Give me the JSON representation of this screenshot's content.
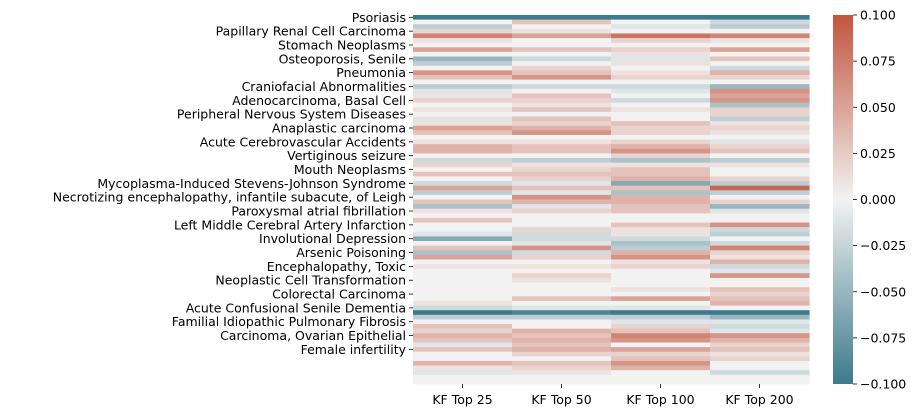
{
  "chart_data": {
    "type": "heatmap",
    "title": "",
    "xlabel": "",
    "ylabel": "",
    "columns": [
      "KF Top 25",
      "KF Top 50",
      "KF Top 100",
      "KF Top 200"
    ],
    "row_count": 80,
    "y_tick_labels": [
      "Psoriasis",
      "Papillary Renal Cell Carcinoma",
      "Stomach Neoplasms",
      "Osteoporosis, Senile",
      "Pneumonia",
      "Craniofacial Abnormalities",
      "Adenocarcinoma, Basal Cell",
      "Peripheral Nervous System Diseases",
      "Anaplastic carcinoma",
      "Acute Cerebrovascular Accidents",
      "Vertiginous seizure",
      "Mouth Neoplasms",
      "Mycoplasma-Induced Stevens-Johnson Syndrome",
      "Necrotizing encephalopathy, infantile subacute, of Leigh",
      "Paroxysmal atrial fibrillation",
      "Left Middle Cerebral Artery Infarction",
      "Involutional Depression",
      "Arsenic Poisoning",
      "Encephalopathy, Toxic",
      "Neoplastic Cell Transformation",
      "Colorectal Carcinoma",
      "Acute Confusional Senile Dementia",
      "Familial Idiopathic Pulmonary Fibrosis",
      "Carcinoma, Ovarian Epithelial",
      "Female infertility"
    ],
    "y_tick_row_positions": [
      0,
      3,
      6,
      9,
      12,
      15,
      18,
      21,
      24,
      27,
      30,
      33,
      36,
      39,
      42,
      45,
      48,
      51,
      54,
      57,
      60,
      63,
      66,
      69,
      72
    ],
    "values": [
      [
        -0.1,
        -0.1,
        -0.1,
        -0.1
      ],
      [
        0.0,
        0.03,
        0.0,
        -0.02
      ],
      [
        -0.03,
        0.0,
        -0.01,
        -0.03
      ],
      [
        0.02,
        0.01,
        0.0,
        0.0
      ],
      [
        0.07,
        0.05,
        0.08,
        0.07
      ],
      [
        0.01,
        0.0,
        0.02,
        0.01
      ],
      [
        0.0,
        0.0,
        0.0,
        0.0
      ],
      [
        0.05,
        0.03,
        0.02,
        0.05
      ],
      [
        0.0,
        0.0,
        0.01,
        0.0
      ],
      [
        -0.05,
        -0.02,
        -0.01,
        0.03
      ],
      [
        -0.03,
        0.0,
        0.01,
        0.0
      ],
      [
        0.0,
        0.02,
        0.0,
        -0.02
      ],
      [
        0.06,
        0.03,
        0.01,
        0.04
      ],
      [
        0.03,
        0.06,
        0.02,
        0.02
      ],
      [
        0.0,
        0.0,
        0.0,
        0.0
      ],
      [
        -0.03,
        -0.02,
        -0.02,
        -0.05
      ],
      [
        -0.01,
        0.0,
        -0.01,
        0.06
      ],
      [
        0.01,
        0.03,
        0.0,
        0.05
      ],
      [
        0.02,
        0.02,
        -0.02,
        0.06
      ],
      [
        0.0,
        0.01,
        0.0,
        -0.04
      ],
      [
        0.01,
        0.03,
        0.01,
        0.02
      ],
      [
        0.0,
        0.0,
        0.0,
        0.02
      ],
      [
        -0.01,
        0.03,
        0.0,
        -0.03
      ],
      [
        0.01,
        0.02,
        0.03,
        0.01
      ],
      [
        0.05,
        0.04,
        0.02,
        0.02
      ],
      [
        0.03,
        0.06,
        0.02,
        0.01
      ],
      [
        0.0,
        0.0,
        0.0,
        0.0
      ],
      [
        0.01,
        0.01,
        0.02,
        -0.01
      ],
      [
        0.04,
        0.03,
        0.04,
        0.02
      ],
      [
        0.04,
        0.03,
        0.06,
        0.03
      ],
      [
        0.0,
        0.0,
        0.02,
        0.0
      ],
      [
        -0.02,
        -0.03,
        -0.04,
        -0.03
      ],
      [
        0.02,
        0.01,
        0.01,
        0.01
      ],
      [
        0.0,
        0.02,
        0.03,
        0.0
      ],
      [
        0.03,
        0.03,
        0.03,
        0.0
      ],
      [
        0.0,
        0.02,
        0.04,
        0.02
      ],
      [
        -0.02,
        -0.01,
        -0.06,
        -0.03
      ],
      [
        0.05,
        0.03,
        0.03,
        0.09
      ],
      [
        -0.03,
        -0.01,
        -0.04,
        -0.03
      ],
      [
        0.0,
        0.06,
        0.04,
        0.0
      ],
      [
        0.03,
        0.04,
        0.04,
        0.02
      ],
      [
        -0.04,
        -0.01,
        0.03,
        -0.05
      ],
      [
        0.01,
        0.02,
        0.03,
        -0.01
      ],
      [
        0.0,
        0.0,
        0.0,
        0.0
      ],
      [
        0.03,
        0.0,
        0.0,
        0.0
      ],
      [
        0.0,
        0.0,
        0.03,
        0.06
      ],
      [
        0.0,
        0.02,
        0.01,
        -0.02
      ],
      [
        -0.01,
        -0.02,
        0.01,
        -0.03
      ],
      [
        -0.06,
        -0.02,
        -0.02,
        0.0
      ],
      [
        0.0,
        -0.01,
        -0.04,
        -0.02
      ],
      [
        0.03,
        0.06,
        -0.03,
        0.07
      ],
      [
        -0.04,
        -0.02,
        0.04,
        0.02
      ],
      [
        0.05,
        0.02,
        0.06,
        0.01
      ],
      [
        0.0,
        0.0,
        0.01,
        0.04
      ],
      [
        0.01,
        0.01,
        0.02,
        -0.02
      ],
      [
        0.0,
        0.0,
        0.0,
        -0.01
      ],
      [
        0.0,
        0.02,
        0.0,
        0.06
      ],
      [
        0.0,
        0.01,
        0.0,
        0.0
      ],
      [
        0.0,
        0.0,
        0.0,
        0.0
      ],
      [
        0.0,
        0.0,
        0.01,
        0.03
      ],
      [
        0.0,
        0.0,
        0.0,
        0.02
      ],
      [
        0.0,
        0.03,
        0.05,
        0.03
      ],
      [
        0.01,
        0.0,
        0.0,
        0.04
      ],
      [
        -0.02,
        -0.01,
        -0.01,
        0.0
      ],
      [
        -0.1,
        -0.09,
        -0.1,
        -0.1
      ],
      [
        -0.03,
        -0.03,
        -0.03,
        -0.05
      ],
      [
        0.0,
        0.0,
        -0.01,
        -0.01
      ],
      [
        0.03,
        0.0,
        0.02,
        -0.02
      ],
      [
        0.02,
        0.04,
        0.03,
        -0.01
      ],
      [
        0.04,
        0.03,
        0.07,
        0.06
      ],
      [
        0.03,
        0.04,
        0.06,
        0.04
      ],
      [
        -0.01,
        0.03,
        0.0,
        0.02
      ],
      [
        0.03,
        0.04,
        0.05,
        0.03
      ],
      [
        0.0,
        0.02,
        0.02,
        0.01
      ],
      [
        0.0,
        0.0,
        0.03,
        0.02
      ],
      [
        0.04,
        0.03,
        0.06,
        0.0
      ],
      [
        0.01,
        0.02,
        0.04,
        0.0
      ],
      [
        -0.01,
        0.01,
        0.0,
        -0.02
      ],
      [
        0.0,
        0.0,
        0.0,
        0.0
      ],
      [
        0.0,
        0.0,
        0.0,
        0.0
      ]
    ],
    "colorbar": {
      "min": -0.1,
      "max": 0.1,
      "ticks": [
        0.1,
        0.075,
        0.05,
        0.025,
        0.0,
        -0.025,
        -0.05,
        -0.075,
        -0.1
      ],
      "tick_labels": [
        "0.100",
        "0.075",
        "0.050",
        "0.025",
        "0.000",
        "−0.025",
        "−0.050",
        "−0.075",
        "−0.100"
      ],
      "colormap": [
        "#3d7a8c",
        "#f2f2f2",
        "#c2553e"
      ]
    },
    "grid": false,
    "legend": "colorbar-right"
  }
}
